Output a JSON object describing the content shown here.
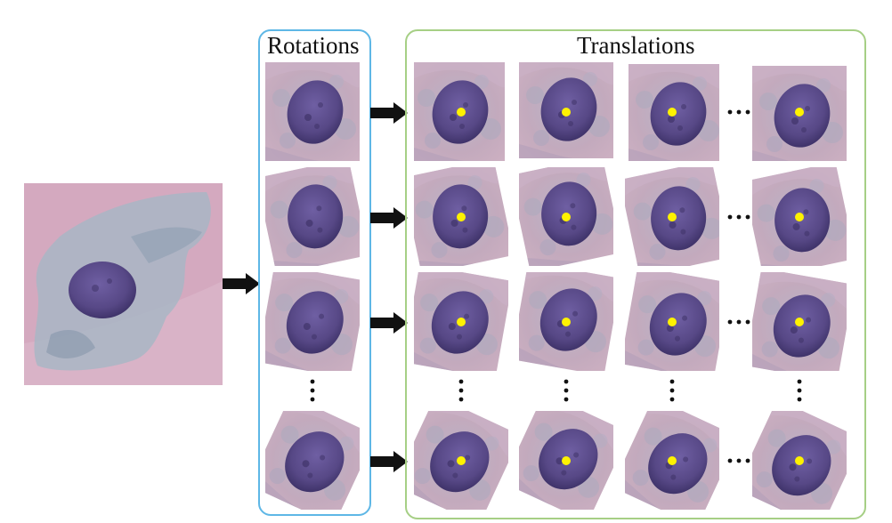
{
  "figure": {
    "rotations_label": "Rotations",
    "translations_label": "Translations",
    "colors": {
      "rotations_frame": "#5eb7e6",
      "translations_frame": "#a6cf85",
      "arrow": "#111111",
      "center_marker": "#fff200",
      "cell_background": "#c9a8bf",
      "nucleus": "#5b4d8f",
      "cytoplasm": "#8fa8b4"
    },
    "icons": {
      "arrow": "right-arrow-icon",
      "vertical_ellipsis": "vertical-ellipsis-icon",
      "horizontal_ellipsis": "horizontal-ellipsis-icon",
      "center_marker": "center-dot-icon"
    }
  }
}
